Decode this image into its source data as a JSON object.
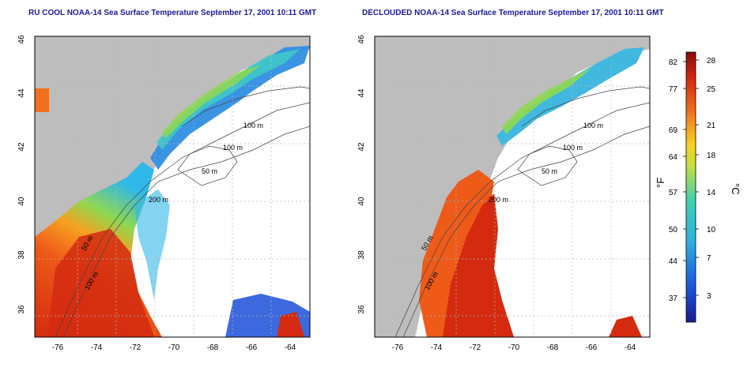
{
  "left_map": {
    "title": "RU COOL NOAA-14 Sea Surface Temperature September 17, 2001 10:11 GMT"
  },
  "right_map": {
    "title": "DECLOUDED NOAA-14 Sea Surface Temperature September 17, 2001 10:11 GMT"
  },
  "axes": {
    "lat_ticks": [
      "46",
      "44",
      "42",
      "40",
      "38",
      "36"
    ],
    "lon_ticks": [
      "-76",
      "-74",
      "-72",
      "-70",
      "-68",
      "-66",
      "-64"
    ]
  },
  "contours": {
    "labels_left": [
      "100 m",
      "100 m",
      "50 m",
      "200 m",
      "50 m",
      "100 m"
    ],
    "labels_right": [
      "100 m",
      "100 m",
      "50 m",
      "200 m",
      "50 m",
      "100 m"
    ]
  },
  "colorbar": {
    "fahrenheit_ticks": [
      "82",
      "77",
      "69",
      "64",
      "57",
      "50",
      "44",
      "37"
    ],
    "celsius_ticks": [
      "28",
      "25",
      "21",
      "18",
      "14",
      "10",
      "7",
      "3"
    ],
    "fahrenheit_unit": "°F",
    "celsius_unit": "°C"
  },
  "colors": {
    "land": "#bdbdbd",
    "ocean_clear": "#ffffff",
    "hot": "#d42a10",
    "warm": "#f06a1c",
    "mid": "#2fb0e0",
    "cool": "#1a50d8",
    "title": "#1a1a99"
  }
}
